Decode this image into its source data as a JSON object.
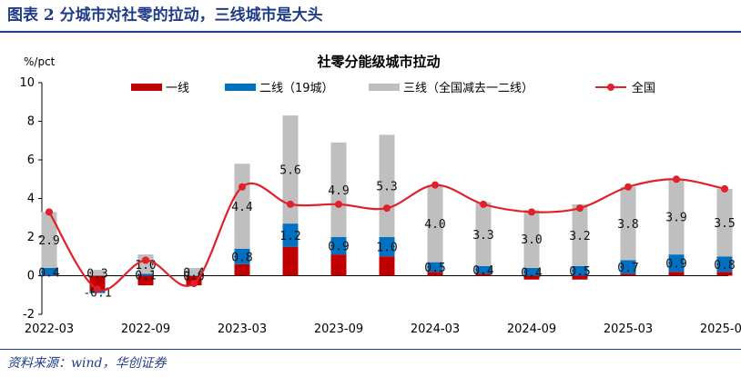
{
  "header": {
    "title": "图表 2   分城市对社零的拉动，三线城市是大头"
  },
  "footer": {
    "source": "资料来源：wind，华创证券"
  },
  "colors": {
    "tier1": "#c00000",
    "tier2": "#0070c0",
    "tier3": "#bfbfbf",
    "national": "#e0202a",
    "rule": "#1f3c88"
  },
  "chart_data": {
    "type": "bar",
    "title": "社零分能级城市拉动",
    "unit_label": "%/pct",
    "ylim": [
      -2,
      10
    ],
    "yticks": [
      -2,
      0,
      2,
      4,
      6,
      8,
      10
    ],
    "categories": [
      "2022-03",
      "2022-06",
      "2022-09",
      "2022-12",
      "2023-03",
      "2023-06",
      "2023-09",
      "2023-12",
      "2024-03",
      "2024-06",
      "2024-09",
      "2024-12",
      "2025-03",
      "2025-06",
      "2025-09"
    ],
    "x_tick_labels": [
      "2022-03",
      "2022-09",
      "2023-03",
      "2023-09",
      "2024-03",
      "2024-09",
      "2025-03",
      "2025-09"
    ],
    "series": [
      {
        "name": "一线",
        "key": "tier1",
        "values": [
          0.0,
          -0.8,
          -0.5,
          -0.5,
          0.6,
          1.5,
          1.1,
          1.0,
          0.2,
          0.1,
          -0.2,
          -0.2,
          0.1,
          0.2,
          0.2
        ]
      },
      {
        "name": "二线（19城）",
        "key": "tier2",
        "values": [
          0.4,
          -0.1,
          0.1,
          0.0,
          0.8,
          1.2,
          0.9,
          1.0,
          0.5,
          0.4,
          0.4,
          0.5,
          0.7,
          0.9,
          0.8
        ]
      },
      {
        "name": "三线（全国减去一二线）",
        "key": "tier3",
        "values": [
          2.9,
          0.3,
          1.0,
          0.4,
          4.4,
          5.6,
          4.9,
          5.3,
          4.0,
          3.3,
          3.0,
          3.2,
          3.8,
          3.9,
          3.5
        ]
      },
      {
        "name": "全国",
        "key": "national",
        "values": [
          3.3,
          -0.7,
          0.8,
          -0.4,
          4.6,
          3.7,
          3.7,
          3.5,
          4.7,
          3.7,
          3.3,
          3.5,
          4.6,
          5.0,
          4.5
        ]
      }
    ],
    "data_labels": {
      "tier2": [
        "0.4",
        "-0.1",
        "0.1",
        "0.0",
        "0.8",
        "1.2",
        "0.9",
        "1.0",
        "0.5",
        "0.4",
        "0.4",
        "0.5",
        "0.7",
        "0.9",
        "0.8"
      ],
      "tier3": [
        "2.9",
        "0.3",
        "1.0",
        "0.4",
        "4.4",
        "5.6",
        "4.9",
        "5.3",
        "4.0",
        "3.3",
        "3.0",
        "3.2",
        "3.8",
        "3.9",
        "3.5"
      ]
    },
    "legend_position": "top",
    "grid": false
  }
}
